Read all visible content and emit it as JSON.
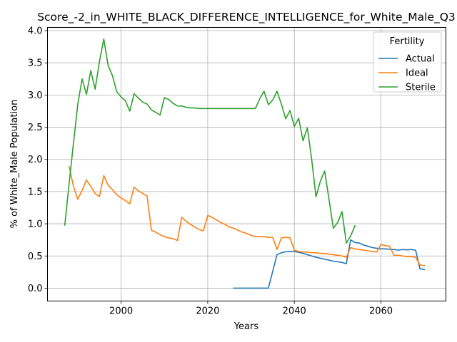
{
  "chart_data": {
    "type": "line",
    "title": "Score_-2_in_WHITE_BLACK_DIFFERENCE_INTELLIGENCE_for_White_Male_Q3",
    "xlabel": "Years",
    "ylabel": "% of White_Male Population",
    "xlim": [
      1983,
      2075
    ],
    "ylim": [
      -0.2,
      4.05
    ],
    "xticks": [
      2000,
      2020,
      2040,
      2060
    ],
    "yticks": [
      0.0,
      0.5,
      1.0,
      1.5,
      2.0,
      2.5,
      3.0,
      3.5,
      4.0
    ],
    "grid": true,
    "legend": {
      "title": "Fertility",
      "position": "top-right"
    },
    "series": [
      {
        "name": "Actual",
        "color": "#1f77b4",
        "points": [
          [
            2026,
            0.0
          ],
          [
            2027,
            0.0
          ],
          [
            2028,
            0.0
          ],
          [
            2029,
            0.0
          ],
          [
            2030,
            0.0
          ],
          [
            2031,
            0.0
          ],
          [
            2032,
            0.0
          ],
          [
            2033,
            0.0
          ],
          [
            2034,
            0.0
          ],
          [
            2035,
            0.26
          ],
          [
            2036,
            0.52
          ],
          [
            2037,
            0.55
          ],
          [
            2038,
            0.565
          ],
          [
            2039,
            0.57
          ],
          [
            2040,
            0.57
          ],
          [
            2041,
            0.555
          ],
          [
            2042,
            0.54
          ],
          [
            2043,
            0.52
          ],
          [
            2044,
            0.5
          ],
          [
            2045,
            0.48
          ],
          [
            2046,
            0.465
          ],
          [
            2047,
            0.45
          ],
          [
            2048,
            0.435
          ],
          [
            2049,
            0.42
          ],
          [
            2050,
            0.41
          ],
          [
            2051,
            0.4
          ],
          [
            2052,
            0.38
          ],
          [
            2053,
            0.75
          ],
          [
            2054,
            0.71
          ],
          [
            2055,
            0.7
          ],
          [
            2056,
            0.67
          ],
          [
            2057,
            0.65
          ],
          [
            2058,
            0.63
          ],
          [
            2059,
            0.62
          ],
          [
            2060,
            0.61
          ],
          [
            2061,
            0.61
          ],
          [
            2062,
            0.605
          ],
          [
            2063,
            0.6
          ],
          [
            2064,
            0.59
          ],
          [
            2065,
            0.6
          ],
          [
            2066,
            0.595
          ],
          [
            2067,
            0.6
          ],
          [
            2068,
            0.59
          ],
          [
            2069,
            0.3
          ],
          [
            2070,
            0.29
          ]
        ]
      },
      {
        "name": "Ideal",
        "color": "#ff7f0e",
        "points": [
          [
            1988,
            1.89
          ],
          [
            1989,
            1.58
          ],
          [
            1990,
            1.38
          ],
          [
            1991,
            1.52
          ],
          [
            1992,
            1.68
          ],
          [
            1993,
            1.58
          ],
          [
            1994,
            1.47
          ],
          [
            1995,
            1.42
          ],
          [
            1996,
            1.75
          ],
          [
            1997,
            1.6
          ],
          [
            1998,
            1.53
          ],
          [
            1999,
            1.45
          ],
          [
            2000,
            1.4
          ],
          [
            2001,
            1.36
          ],
          [
            2002,
            1.31
          ],
          [
            2003,
            1.57
          ],
          [
            2004,
            1.51
          ],
          [
            2005,
            1.47
          ],
          [
            2006,
            1.43
          ],
          [
            2007,
            0.9
          ],
          [
            2008,
            0.87
          ],
          [
            2009,
            0.83
          ],
          [
            2010,
            0.8
          ],
          [
            2011,
            0.78
          ],
          [
            2012,
            0.77
          ],
          [
            2013,
            0.74
          ],
          [
            2014,
            1.1
          ],
          [
            2015,
            1.04
          ],
          [
            2016,
            0.99
          ],
          [
            2017,
            0.95
          ],
          [
            2018,
            0.91
          ],
          [
            2019,
            0.89
          ],
          [
            2020,
            1.13
          ],
          [
            2021,
            1.1
          ],
          [
            2022,
            1.06
          ],
          [
            2023,
            1.02
          ],
          [
            2024,
            0.99
          ],
          [
            2025,
            0.95
          ],
          [
            2026,
            0.93
          ],
          [
            2027,
            0.9
          ],
          [
            2028,
            0.87
          ],
          [
            2029,
            0.85
          ],
          [
            2030,
            0.82
          ],
          [
            2031,
            0.8
          ],
          [
            2032,
            0.8
          ],
          [
            2033,
            0.8
          ],
          [
            2034,
            0.79
          ],
          [
            2035,
            0.79
          ],
          [
            2036,
            0.6
          ],
          [
            2037,
            0.78
          ],
          [
            2038,
            0.79
          ],
          [
            2039,
            0.78
          ],
          [
            2040,
            0.59
          ],
          [
            2041,
            0.57
          ],
          [
            2042,
            0.56
          ],
          [
            2043,
            0.56
          ],
          [
            2044,
            0.55
          ],
          [
            2045,
            0.55
          ],
          [
            2046,
            0.54
          ],
          [
            2047,
            0.54
          ],
          [
            2048,
            0.53
          ],
          [
            2049,
            0.52
          ],
          [
            2050,
            0.51
          ],
          [
            2051,
            0.5
          ],
          [
            2052,
            0.48
          ],
          [
            2053,
            0.63
          ],
          [
            2054,
            0.61
          ],
          [
            2055,
            0.6
          ],
          [
            2056,
            0.59
          ],
          [
            2057,
            0.58
          ],
          [
            2058,
            0.57
          ],
          [
            2059,
            0.56
          ],
          [
            2060,
            0.68
          ],
          [
            2061,
            0.66
          ],
          [
            2062,
            0.65
          ],
          [
            2063,
            0.51
          ],
          [
            2064,
            0.51
          ],
          [
            2065,
            0.5
          ],
          [
            2066,
            0.49
          ],
          [
            2067,
            0.49
          ],
          [
            2068,
            0.48
          ],
          [
            2069,
            0.36
          ],
          [
            2070,
            0.35
          ]
        ]
      },
      {
        "name": "Sterile",
        "color": "#2ca02c",
        "points": [
          [
            1987,
            0.98
          ],
          [
            1988,
            1.63
          ],
          [
            1989,
            2.25
          ],
          [
            1990,
            2.86
          ],
          [
            1991,
            3.25
          ],
          [
            1992,
            3.01
          ],
          [
            1993,
            3.38
          ],
          [
            1994,
            3.09
          ],
          [
            1995,
            3.52
          ],
          [
            1996,
            3.87
          ],
          [
            1997,
            3.46
          ],
          [
            1998,
            3.3
          ],
          [
            1999,
            3.05
          ],
          [
            2000,
            2.97
          ],
          [
            2001,
            2.91
          ],
          [
            2002,
            2.75
          ],
          [
            2003,
            3.02
          ],
          [
            2004,
            2.95
          ],
          [
            2005,
            2.89
          ],
          [
            2006,
            2.86
          ],
          [
            2007,
            2.77
          ],
          [
            2008,
            2.73
          ],
          [
            2009,
            2.69
          ],
          [
            2010,
            2.96
          ],
          [
            2011,
            2.93
          ],
          [
            2012,
            2.87
          ],
          [
            2013,
            2.83
          ],
          [
            2014,
            2.83
          ],
          [
            2015,
            2.81
          ],
          [
            2016,
            2.8
          ],
          [
            2017,
            2.8
          ],
          [
            2018,
            2.79
          ],
          [
            2019,
            2.79
          ],
          [
            2020,
            2.79
          ],
          [
            2021,
            2.79
          ],
          [
            2022,
            2.79
          ],
          [
            2023,
            2.79
          ],
          [
            2024,
            2.79
          ],
          [
            2025,
            2.79
          ],
          [
            2026,
            2.79
          ],
          [
            2027,
            2.79
          ],
          [
            2028,
            2.79
          ],
          [
            2029,
            2.79
          ],
          [
            2030,
            2.79
          ],
          [
            2031,
            2.79
          ],
          [
            2032,
            2.94
          ],
          [
            2033,
            3.06
          ],
          [
            2034,
            2.85
          ],
          [
            2035,
            2.92
          ],
          [
            2036,
            3.06
          ],
          [
            2037,
            2.86
          ],
          [
            2038,
            2.63
          ],
          [
            2039,
            2.76
          ],
          [
            2040,
            2.51
          ],
          [
            2041,
            2.64
          ],
          [
            2042,
            2.29
          ],
          [
            2043,
            2.49
          ],
          [
            2044,
            2.0
          ],
          [
            2045,
            1.42
          ],
          [
            2046,
            1.66
          ],
          [
            2047,
            1.82
          ],
          [
            2048,
            1.38
          ],
          [
            2049,
            0.93
          ],
          [
            2050,
            1.02
          ],
          [
            2051,
            1.19
          ],
          [
            2052,
            0.7
          ],
          [
            2053,
            0.81
          ],
          [
            2054,
            0.97
          ]
        ]
      }
    ]
  }
}
